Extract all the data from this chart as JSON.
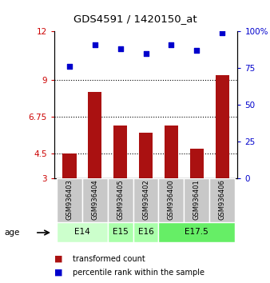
{
  "title": "GDS4591 / 1420150_at",
  "samples": [
    "GSM936403",
    "GSM936404",
    "GSM936405",
    "GSM936402",
    "GSM936400",
    "GSM936401",
    "GSM936406"
  ],
  "bar_values": [
    4.5,
    8.3,
    6.25,
    5.8,
    6.25,
    4.8,
    9.3
  ],
  "scatter_values": [
    76,
    91,
    88,
    85,
    91,
    87,
    99
  ],
  "ages": [
    {
      "label": "E14",
      "start": 0,
      "end": 2,
      "color": "#ccffcc"
    },
    {
      "label": "E15",
      "start": 2,
      "end": 3,
      "color": "#aaffaa"
    },
    {
      "label": "E16",
      "start": 3,
      "end": 4,
      "color": "#aaffaa"
    },
    {
      "label": "E17.5",
      "start": 4,
      "end": 7,
      "color": "#66ee66"
    }
  ],
  "bar_color": "#aa1111",
  "scatter_color": "#0000cc",
  "ylim_left": [
    3,
    12
  ],
  "ylim_right": [
    0,
    100
  ],
  "yticks_left": [
    3,
    4.5,
    6.75,
    9,
    12
  ],
  "yticks_right": [
    0,
    25,
    50,
    75,
    100
  ],
  "ytick_labels_left": [
    "3",
    "4.5",
    "6.75",
    "9",
    "12"
  ],
  "ytick_labels_right": [
    "0",
    "25",
    "50",
    "75",
    "100%"
  ],
  "hlines": [
    4.5,
    6.75,
    9
  ],
  "left_tick_color": "#cc0000",
  "right_tick_color": "#0000cc",
  "sample_box_color": "#c8c8c8",
  "fig_width": 3.38,
  "fig_height": 3.54,
  "dpi": 100
}
